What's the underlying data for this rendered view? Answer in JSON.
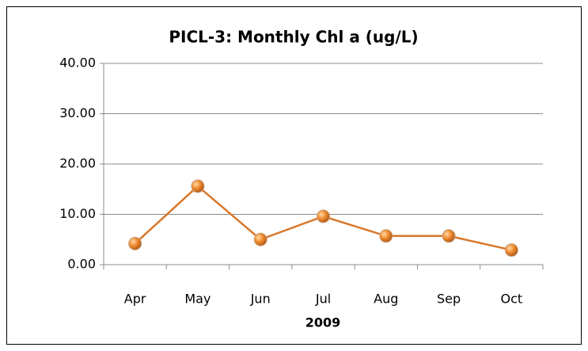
{
  "chart_data": {
    "type": "line",
    "title": "PICL-3: Monthly Chl a (ug/L)",
    "x_label": "2009",
    "categories": [
      "Apr",
      "May",
      "Jun",
      "Jul",
      "Aug",
      "Sep",
      "Oct"
    ],
    "series": [
      {
        "name": "Chl a",
        "color": "#d9772a",
        "values": [
          4.2,
          15.6,
          5.0,
          9.6,
          5.7,
          5.7,
          2.9
        ]
      }
    ],
    "ylim": [
      0,
      40
    ],
    "yticks": [
      {
        "value": 0,
        "label": "0.00"
      },
      {
        "value": 10,
        "label": "10.00"
      },
      {
        "value": 20,
        "label": "20.00"
      },
      {
        "value": 30,
        "label": "30.00"
      },
      {
        "value": 40,
        "label": "40.00"
      }
    ],
    "grid": true,
    "legend": false
  }
}
